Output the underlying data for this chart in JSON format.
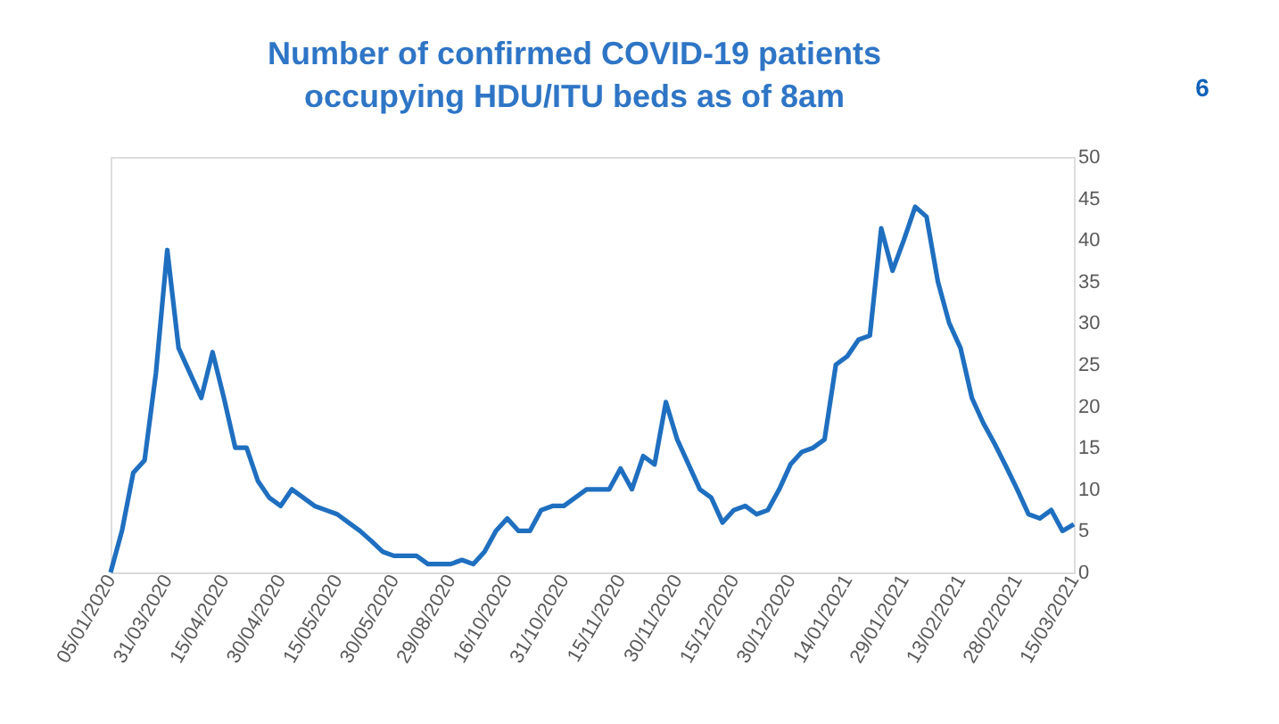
{
  "chart_data": {
    "type": "line",
    "title": [
      "Number of confirmed COVID-19 patients",
      "occupying HDU/ITU beds as of 8am"
    ],
    "categories": [
      "05/01/2020",
      null,
      null,
      null,
      null,
      "31/03/2020",
      null,
      null,
      null,
      null,
      "15/04/2020",
      null,
      null,
      null,
      null,
      "30/04/2020",
      null,
      null,
      null,
      null,
      "15/05/2020",
      null,
      null,
      null,
      null,
      "30/05/2020",
      null,
      null,
      null,
      null,
      "29/08/2020",
      null,
      null,
      null,
      null,
      "16/10/2020",
      null,
      null,
      null,
      null,
      "31/10/2020",
      null,
      null,
      null,
      null,
      "15/11/2020",
      null,
      null,
      null,
      null,
      "30/11/2020",
      null,
      null,
      null,
      null,
      "15/12/2020",
      null,
      null,
      null,
      null,
      "30/12/2020",
      null,
      null,
      null,
      null,
      "14/01/2021",
      null,
      null,
      null,
      null,
      "29/01/2021",
      null,
      null,
      null,
      null,
      "13/02/2021",
      null,
      null,
      null,
      null,
      "28/02/2021",
      null,
      null,
      null,
      null,
      "15/03/2021"
    ],
    "series": [
      {
        "color": "#1f6fc0",
        "values": [
          0,
          5,
          12,
          13.5,
          24,
          38.8,
          27,
          24,
          21,
          26.5,
          21,
          15,
          15,
          11,
          9,
          8,
          10,
          9,
          8,
          7.5,
          7,
          6,
          5,
          3.8,
          2.5,
          2,
          2,
          2,
          1,
          1,
          1,
          1.5,
          1,
          2.5,
          5,
          6.5,
          5,
          5,
          7.5,
          8,
          8,
          9,
          10,
          10,
          10,
          12.5,
          10,
          14,
          13,
          20.5,
          16,
          13,
          10,
          9,
          6,
          7.5,
          8,
          7,
          7.5,
          10,
          13,
          14.5,
          15,
          16,
          25,
          26,
          28,
          28.5,
          41.4,
          36.3,
          40,
          44,
          42.8,
          35,
          30,
          27,
          21,
          18,
          15.5,
          12.8,
          10,
          7,
          6.5,
          7.5,
          5,
          5.8
        ]
      }
    ],
    "ylim": [
      0,
      50
    ],
    "yticks": [
      0,
      5,
      10,
      15,
      20,
      25,
      30,
      35,
      40,
      45,
      50
    ],
    "grid": false,
    "legend": false,
    "marker": "none",
    "line_style": "solid",
    "annotations": [
      "6"
    ]
  }
}
